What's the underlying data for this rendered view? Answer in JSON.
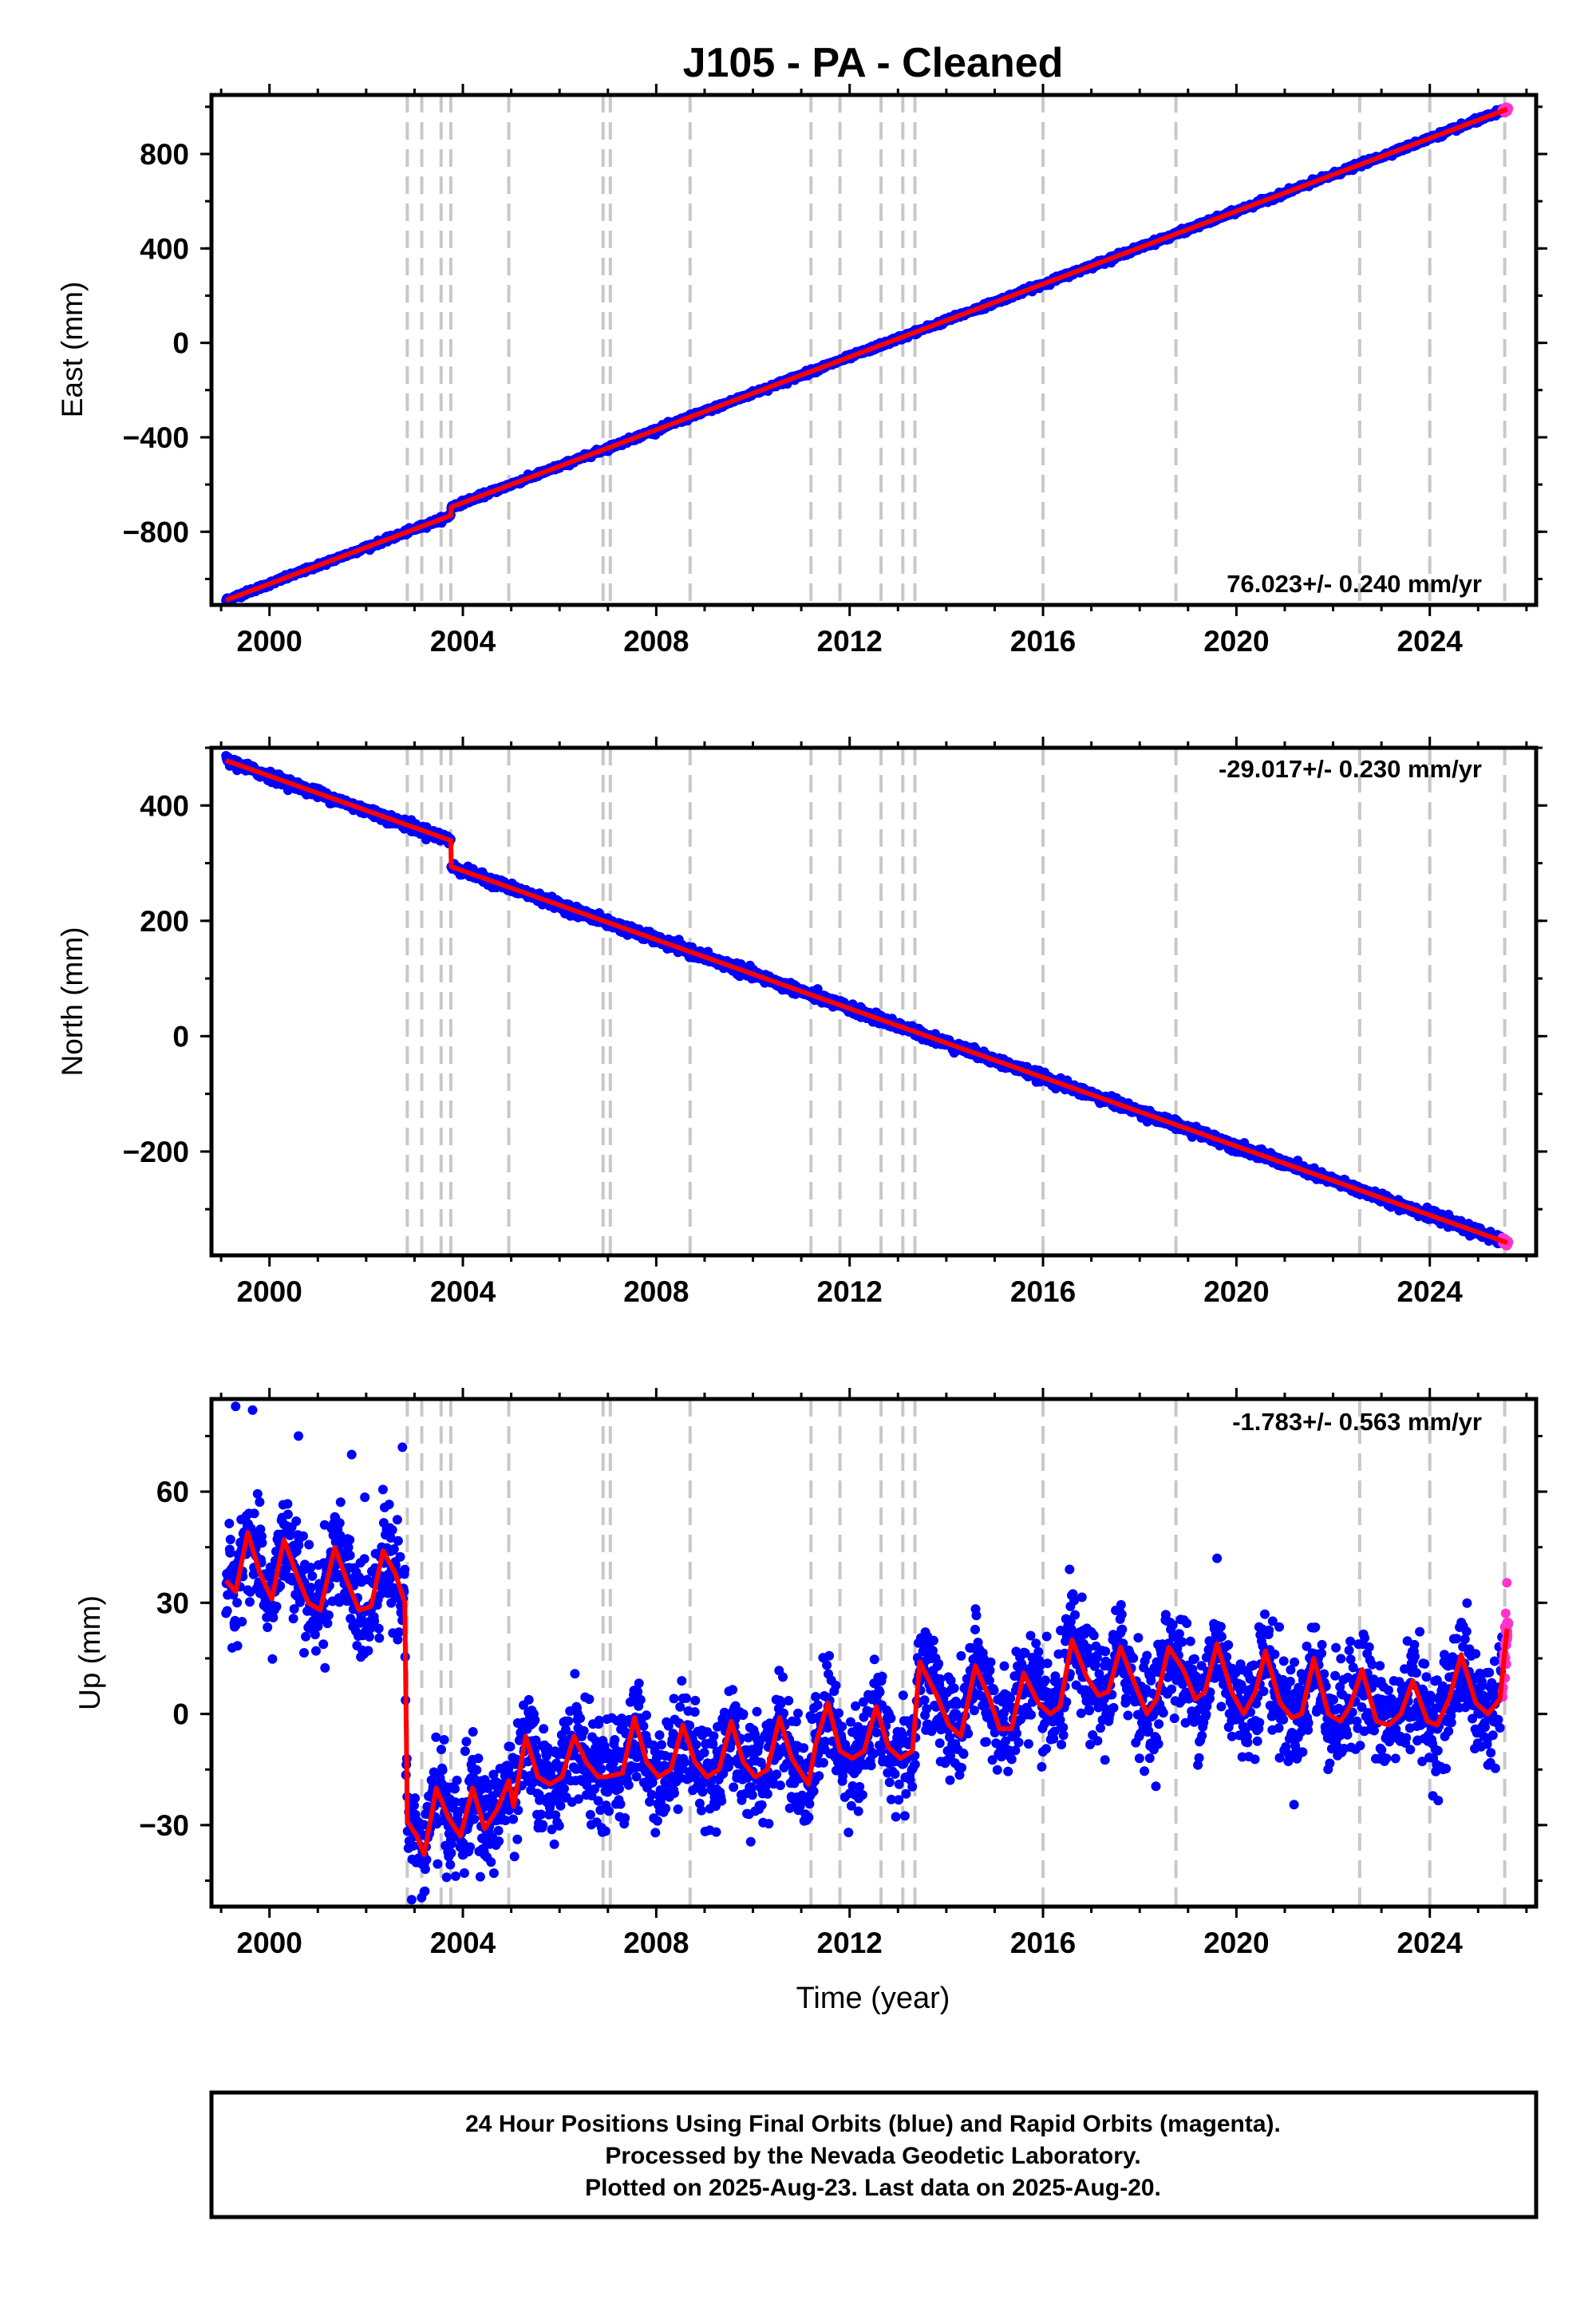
{
  "colors": {
    "final_orbits": "#0000ff",
    "rapid_orbits": "#ff33cc",
    "model": "#ff0000",
    "event_lines": "#c8c8c8"
  },
  "chart_data": {
    "type": "scatter",
    "title": "J105  - PA - Cleaned",
    "xlabel": "Time (year)",
    "xlim": [
      1998.8,
      2026.2
    ],
    "xticks": [
      2000,
      2004,
      2008,
      2012,
      2016,
      2020,
      2024
    ],
    "xtick_labels": [
      "2000",
      "2004",
      "2008",
      "2012",
      "2016",
      "2020",
      "2024"
    ],
    "event_lines_year": [
      2002.85,
      2003.15,
      2003.55,
      2003.75,
      2004.95,
      2006.9,
      2007.05,
      2008.7,
      2011.2,
      2011.8,
      2012.65,
      2013.1,
      2013.35,
      2016.0,
      2018.75,
      2022.55,
      2024.0,
      2025.55
    ],
    "grid": false,
    "panels": [
      {
        "name": "east",
        "ylabel": "East (mm)",
        "ylim": [
          -1110,
          1050
        ],
        "yticks": [
          -800,
          -400,
          0,
          400,
          800
        ],
        "ytick_labels": [
          "−800",
          "−400",
          "0",
          "400",
          "800"
        ],
        "rate_label": "76.023+/- 0.240 mm/yr",
        "rate_position": "bottom-right",
        "trend_anchor": {
          "year": 2011.5,
          "value": -60
        },
        "rate": 76.023,
        "offsets": [
          {
            "year": 2003.75,
            "value": 35
          }
        ],
        "start": {
          "year": 1999.1,
          "value": -1090
        },
        "end": {
          "year": 2025.6,
          "value": 990
        },
        "noise": 5
      },
      {
        "name": "north",
        "ylabel": "North (mm)",
        "ylim": [
          -380,
          500
        ],
        "yticks": [
          -200,
          0,
          200,
          400
        ],
        "ytick_labels": [
          "−200",
          "0",
          "200",
          "400"
        ],
        "rate_label": "-29.017+/- 0.230 mm/yr",
        "rate_position": "top-right",
        "trend_anchor": {
          "year": 2011.5,
          "value": 25
        },
        "rate": -29.017,
        "offsets": [
          {
            "year": 2003.75,
            "value": -45
          }
        ],
        "start": {
          "year": 1999.1,
          "value": 478
        },
        "end": {
          "year": 2025.6,
          "value": -358
        },
        "noise": 4
      },
      {
        "name": "up",
        "ylabel": "Up (mm)",
        "ylim": [
          -52,
          85
        ],
        "yticks": [
          -30,
          0,
          30,
          60
        ],
        "ytick_labels": [
          "−30",
          "0",
          "30",
          "60"
        ],
        "rate_label": "-1.783+/- 0.563 mm/yr",
        "rate_position": "top-right",
        "model_points": [
          [
            1999.1,
            36
          ],
          [
            1999.3,
            33
          ],
          [
            1999.55,
            49
          ],
          [
            1999.8,
            38
          ],
          [
            2000.05,
            31
          ],
          [
            2000.3,
            47
          ],
          [
            2000.55,
            38
          ],
          [
            2000.8,
            30
          ],
          [
            2001.05,
            28
          ],
          [
            2001.35,
            45
          ],
          [
            2001.6,
            36
          ],
          [
            2001.85,
            28
          ],
          [
            2002.1,
            29
          ],
          [
            2002.35,
            44
          ],
          [
            2002.6,
            38
          ],
          [
            2002.8,
            30
          ],
          [
            2002.85,
            -29
          ],
          [
            2003.05,
            -33
          ],
          [
            2003.2,
            -38
          ],
          [
            2003.45,
            -20
          ],
          [
            2003.7,
            -28
          ],
          [
            2003.95,
            -33
          ],
          [
            2004.2,
            -20
          ],
          [
            2004.45,
            -31
          ],
          [
            2004.7,
            -26
          ],
          [
            2004.95,
            -18
          ],
          [
            2005.05,
            -25
          ],
          [
            2005.3,
            -6
          ],
          [
            2005.55,
            -17
          ],
          [
            2005.8,
            -19
          ],
          [
            2006.05,
            -17
          ],
          [
            2006.3,
            -6
          ],
          [
            2006.55,
            -13
          ],
          [
            2006.8,
            -17
          ],
          [
            2006.95,
            -17
          ],
          [
            2007.3,
            -16
          ],
          [
            2007.55,
            -1
          ],
          [
            2007.8,
            -13
          ],
          [
            2008.05,
            -17
          ],
          [
            2008.3,
            -15
          ],
          [
            2008.55,
            -3
          ],
          [
            2008.8,
            -13
          ],
          [
            2009.05,
            -17
          ],
          [
            2009.3,
            -15
          ],
          [
            2009.55,
            -2
          ],
          [
            2009.8,
            -13
          ],
          [
            2010.05,
            -17
          ],
          [
            2010.3,
            -15
          ],
          [
            2010.55,
            -1
          ],
          [
            2010.8,
            -12
          ],
          [
            2011.15,
            -19
          ],
          [
            2011.3,
            -8
          ],
          [
            2011.55,
            3
          ],
          [
            2011.8,
            -10
          ],
          [
            2012.05,
            -12
          ],
          [
            2012.3,
            -10
          ],
          [
            2012.55,
            2
          ],
          [
            2012.8,
            -9
          ],
          [
            2013.05,
            -12
          ],
          [
            2013.3,
            -10
          ],
          [
            2013.45,
            14
          ],
          [
            2013.8,
            5
          ],
          [
            2014.05,
            -3
          ],
          [
            2014.3,
            -6
          ],
          [
            2014.6,
            13
          ],
          [
            2014.9,
            4
          ],
          [
            2015.1,
            -4
          ],
          [
            2015.35,
            -4
          ],
          [
            2015.6,
            11
          ],
          [
            2015.9,
            3
          ],
          [
            2016.15,
            0
          ],
          [
            2016.35,
            2
          ],
          [
            2016.6,
            20
          ],
          [
            2016.9,
            10
          ],
          [
            2017.15,
            5
          ],
          [
            2017.35,
            6
          ],
          [
            2017.6,
            18
          ],
          [
            2017.9,
            8
          ],
          [
            2018.15,
            0
          ],
          [
            2018.35,
            4
          ],
          [
            2018.6,
            18
          ],
          [
            2018.9,
            12
          ],
          [
            2019.15,
            4
          ],
          [
            2019.35,
            6
          ],
          [
            2019.6,
            19
          ],
          [
            2019.9,
            6
          ],
          [
            2020.15,
            0
          ],
          [
            2020.4,
            6
          ],
          [
            2020.6,
            17
          ],
          [
            2020.9,
            3
          ],
          [
            2021.15,
            -1
          ],
          [
            2021.35,
            0
          ],
          [
            2021.6,
            15
          ],
          [
            2021.9,
            0
          ],
          [
            2022.15,
            -2
          ],
          [
            2022.35,
            2
          ],
          [
            2022.6,
            12
          ],
          [
            2022.9,
            -2
          ],
          [
            2023.15,
            -3
          ],
          [
            2023.4,
            0
          ],
          [
            2023.65,
            9
          ],
          [
            2023.95,
            -2
          ],
          [
            2024.15,
            -3
          ],
          [
            2024.4,
            4
          ],
          [
            2024.65,
            16
          ],
          [
            2024.95,
            3
          ],
          [
            2025.2,
            0
          ],
          [
            2025.45,
            4
          ],
          [
            2025.6,
            23
          ]
        ],
        "noise": 7,
        "outliers": [
          [
            1999.65,
            82
          ],
          [
            1999.3,
            83
          ],
          [
            2000.6,
            75
          ],
          [
            2001.7,
            70
          ],
          [
            2002.75,
            72
          ],
          [
            2003.2,
            -48
          ],
          [
            2016.55,
            39
          ],
          [
            2019.6,
            42
          ]
        ]
      }
    ]
  },
  "footer": {
    "line1": "24 Hour Positions Using Final Orbits (blue) and Rapid Orbits (magenta).",
    "line2": "Processed by the Nevada Geodetic Laboratory.",
    "line3": "Plotted on 2025-Aug-23. Last data on 2025-Aug-20."
  }
}
